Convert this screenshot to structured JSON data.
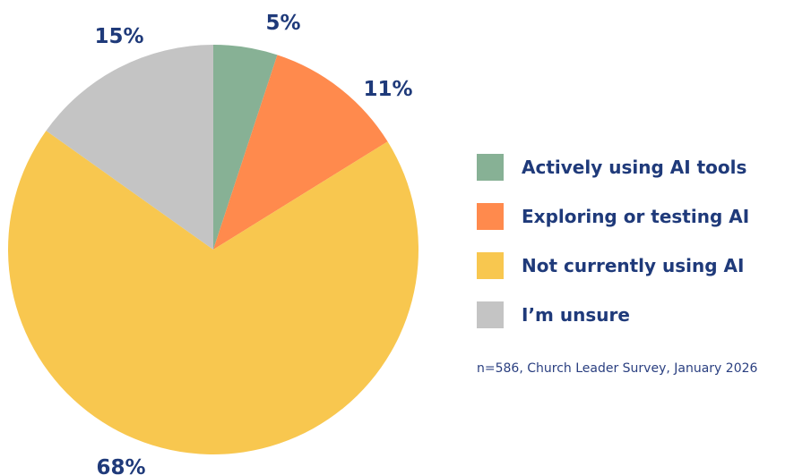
{
  "chart_data": {
    "type": "pie",
    "categories": [
      "Actively using AI tools",
      "Exploring or testing AI",
      "Not currently using AI",
      "I’m unsure"
    ],
    "values": [
      5,
      11,
      68,
      15
    ],
    "data_labels": [
      "5%",
      "11%",
      "68%",
      "15%"
    ],
    "colors": [
      "#87b195",
      "#ff8a4d",
      "#f8c74f",
      "#c4c4c4"
    ],
    "legend_placement": "right",
    "start": "top",
    "direction": "clockwise"
  },
  "legend": {
    "items": [
      {
        "label": "Actively using AI tools",
        "color": "#87b195"
      },
      {
        "label": "Exploring or testing AI",
        "color": "#ff8a4d"
      },
      {
        "label": "Not currently using AI",
        "color": "#f8c74f"
      },
      {
        "label": "I’m unsure",
        "color": "#c4c4c4"
      }
    ]
  },
  "footnote": "n=586, Church Leader Survey, January 2026"
}
